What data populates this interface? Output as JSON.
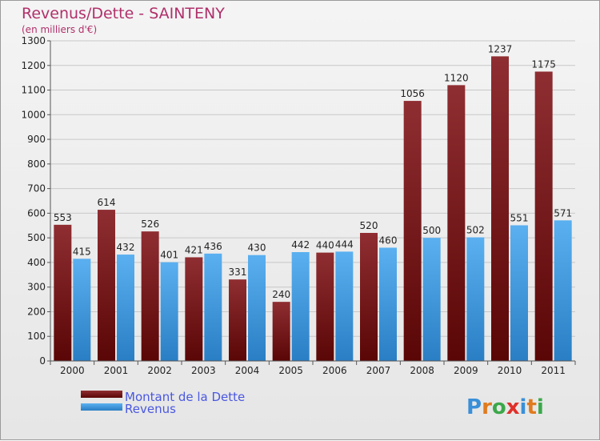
{
  "chart_data": {
    "type": "bar",
    "title": "Revenus/Dette - SAINTENY",
    "subtitle": "(en milliers d'€)",
    "categories": [
      "2000",
      "2001",
      "2002",
      "2003",
      "2004",
      "2005",
      "2006",
      "2007",
      "2008",
      "2009",
      "2010",
      "2011"
    ],
    "series": [
      {
        "name": "Montant de la Dette",
        "color": "#7a1a1e",
        "values": [
          553,
          614,
          526,
          421,
          331,
          240,
          440,
          520,
          1056,
          1120,
          1237,
          1175
        ]
      },
      {
        "name": "Revenus",
        "color": "#3d95dc",
        "values": [
          415,
          432,
          401,
          436,
          430,
          442,
          444,
          460,
          500,
          502,
          551,
          571
        ]
      }
    ],
    "ylim": [
      0,
      1300
    ],
    "yticks": [
      0,
      100,
      200,
      300,
      400,
      500,
      600,
      700,
      800,
      900,
      1000,
      1100,
      1200,
      1300
    ],
    "grid": true,
    "legend_position": "bottom-left"
  },
  "logo": {
    "letters": [
      "P",
      "r",
      "o",
      "x",
      "i",
      "t",
      "i"
    ],
    "colors": [
      "#3a8fd8",
      "#e07b1e",
      "#3ba84a",
      "#e0302a",
      "#3a8fd8",
      "#e07b1e",
      "#3ba84a"
    ]
  }
}
